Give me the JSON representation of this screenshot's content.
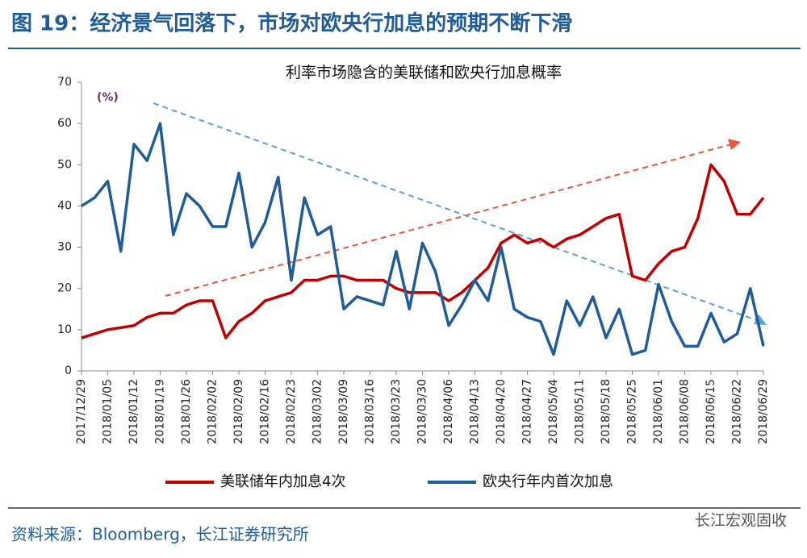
{
  "header": {
    "title": "图 19：经济景气回落下，市场对欧央行加息的预期不断下滑"
  },
  "chart_data": {
    "type": "line",
    "title": "利率市场隐含的美联储和欧央行加息概率",
    "y_unit": "(%)",
    "categories": [
      "2017/12/29",
      null,
      "2018/01/05",
      null,
      "2018/01/12",
      null,
      "2018/01/19",
      null,
      "2018/01/26",
      null,
      "2018/02/02",
      null,
      "2018/02/09",
      null,
      "2018/02/16",
      null,
      "2018/02/23",
      null,
      "2018/03/02",
      null,
      "2018/03/09",
      null,
      "2018/03/16",
      null,
      "2018/03/23",
      null,
      "2018/03/30",
      null,
      "2018/04/06",
      null,
      "2018/04/13",
      null,
      "2018/04/20",
      null,
      "2018/04/27",
      null,
      "2018/05/04",
      null,
      "2018/05/11",
      null,
      "2018/05/18",
      null,
      "2018/05/25",
      null,
      "2018/06/01",
      null,
      "2018/06/08",
      null,
      "2018/06/15",
      null,
      "2018/06/22",
      null,
      "2018/06/29"
    ],
    "series": [
      {
        "name": "美联储年内加息4次",
        "color": "#c00000",
        "values": [
          8,
          9,
          10,
          10.5,
          11,
          13,
          14,
          14,
          16,
          17,
          17,
          8,
          12,
          14,
          17,
          18,
          19,
          22,
          22,
          23,
          23,
          22,
          22,
          22,
          20,
          19,
          19,
          19,
          17,
          19,
          22,
          25,
          31,
          33,
          31,
          32,
          30,
          32,
          33,
          35,
          37,
          38,
          23,
          22,
          26,
          29,
          30,
          37,
          50,
          46,
          38,
          38,
          42
        ]
      },
      {
        "name": "欧央行年内首次加息",
        "color": "#1f5c99",
        "values": [
          40,
          42,
          46,
          29,
          55,
          51,
          60,
          33,
          43,
          40,
          35,
          35,
          48,
          30,
          36,
          47,
          22,
          42,
          33,
          35,
          15,
          18,
          17,
          16,
          29,
          15,
          31,
          24,
          11,
          16,
          22,
          17,
          30,
          15,
          13,
          12,
          4,
          17,
          11,
          18,
          8,
          15,
          4,
          5,
          21,
          12,
          6,
          6,
          14,
          7,
          9,
          20,
          6
        ]
      }
    ],
    "ylim": [
      0,
      70
    ],
    "yticks": [
      0,
      10,
      20,
      30,
      40,
      50,
      60,
      70
    ],
    "grid": false
  },
  "source": "资料来源：Bloomberg，长江证券研究所",
  "watermark": "长江宏观固收"
}
